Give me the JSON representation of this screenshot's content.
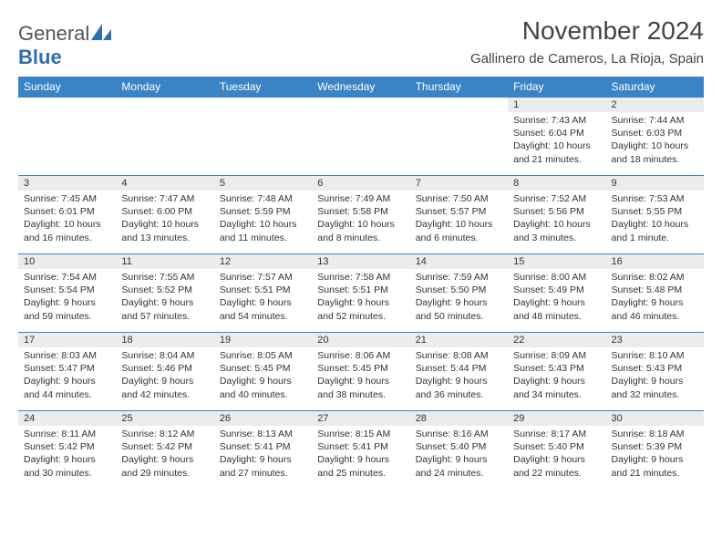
{
  "logo": {
    "line1": "General",
    "line2": "Blue"
  },
  "title": "November 2024",
  "location": "Gallinero de Cameros, La Rioja, Spain",
  "colors": {
    "header_bg": "#3a83c5",
    "header_text": "#ffffff",
    "daynum_bg": "#ececec",
    "cell_border": "#3a83c5",
    "text": "#333333",
    "logo_gray": "#555555",
    "logo_blue": "#2f6fb0",
    "background": "#ffffff"
  },
  "typography": {
    "title_fontsize": 28,
    "location_fontsize": 15,
    "weekday_fontsize": 12,
    "daynum_fontsize": 11,
    "body_fontsize": 10.5,
    "logo_fontsize": 22
  },
  "layout": {
    "columns": 7,
    "rows": 5,
    "first_weekday_index": 5
  },
  "weekdays": [
    "Sunday",
    "Monday",
    "Tuesday",
    "Wednesday",
    "Thursday",
    "Friday",
    "Saturday"
  ],
  "days": [
    {
      "n": 1,
      "sunrise": "7:43 AM",
      "sunset": "6:04 PM",
      "daylight": "10 hours and 21 minutes."
    },
    {
      "n": 2,
      "sunrise": "7:44 AM",
      "sunset": "6:03 PM",
      "daylight": "10 hours and 18 minutes."
    },
    {
      "n": 3,
      "sunrise": "7:45 AM",
      "sunset": "6:01 PM",
      "daylight": "10 hours and 16 minutes."
    },
    {
      "n": 4,
      "sunrise": "7:47 AM",
      "sunset": "6:00 PM",
      "daylight": "10 hours and 13 minutes."
    },
    {
      "n": 5,
      "sunrise": "7:48 AM",
      "sunset": "5:59 PM",
      "daylight": "10 hours and 11 minutes."
    },
    {
      "n": 6,
      "sunrise": "7:49 AM",
      "sunset": "5:58 PM",
      "daylight": "10 hours and 8 minutes."
    },
    {
      "n": 7,
      "sunrise": "7:50 AM",
      "sunset": "5:57 PM",
      "daylight": "10 hours and 6 minutes."
    },
    {
      "n": 8,
      "sunrise": "7:52 AM",
      "sunset": "5:56 PM",
      "daylight": "10 hours and 3 minutes."
    },
    {
      "n": 9,
      "sunrise": "7:53 AM",
      "sunset": "5:55 PM",
      "daylight": "10 hours and 1 minute."
    },
    {
      "n": 10,
      "sunrise": "7:54 AM",
      "sunset": "5:54 PM",
      "daylight": "9 hours and 59 minutes."
    },
    {
      "n": 11,
      "sunrise": "7:55 AM",
      "sunset": "5:52 PM",
      "daylight": "9 hours and 57 minutes."
    },
    {
      "n": 12,
      "sunrise": "7:57 AM",
      "sunset": "5:51 PM",
      "daylight": "9 hours and 54 minutes."
    },
    {
      "n": 13,
      "sunrise": "7:58 AM",
      "sunset": "5:51 PM",
      "daylight": "9 hours and 52 minutes."
    },
    {
      "n": 14,
      "sunrise": "7:59 AM",
      "sunset": "5:50 PM",
      "daylight": "9 hours and 50 minutes."
    },
    {
      "n": 15,
      "sunrise": "8:00 AM",
      "sunset": "5:49 PM",
      "daylight": "9 hours and 48 minutes."
    },
    {
      "n": 16,
      "sunrise": "8:02 AM",
      "sunset": "5:48 PM",
      "daylight": "9 hours and 46 minutes."
    },
    {
      "n": 17,
      "sunrise": "8:03 AM",
      "sunset": "5:47 PM",
      "daylight": "9 hours and 44 minutes."
    },
    {
      "n": 18,
      "sunrise": "8:04 AM",
      "sunset": "5:46 PM",
      "daylight": "9 hours and 42 minutes."
    },
    {
      "n": 19,
      "sunrise": "8:05 AM",
      "sunset": "5:45 PM",
      "daylight": "9 hours and 40 minutes."
    },
    {
      "n": 20,
      "sunrise": "8:06 AM",
      "sunset": "5:45 PM",
      "daylight": "9 hours and 38 minutes."
    },
    {
      "n": 21,
      "sunrise": "8:08 AM",
      "sunset": "5:44 PM",
      "daylight": "9 hours and 36 minutes."
    },
    {
      "n": 22,
      "sunrise": "8:09 AM",
      "sunset": "5:43 PM",
      "daylight": "9 hours and 34 minutes."
    },
    {
      "n": 23,
      "sunrise": "8:10 AM",
      "sunset": "5:43 PM",
      "daylight": "9 hours and 32 minutes."
    },
    {
      "n": 24,
      "sunrise": "8:11 AM",
      "sunset": "5:42 PM",
      "daylight": "9 hours and 30 minutes."
    },
    {
      "n": 25,
      "sunrise": "8:12 AM",
      "sunset": "5:42 PM",
      "daylight": "9 hours and 29 minutes."
    },
    {
      "n": 26,
      "sunrise": "8:13 AM",
      "sunset": "5:41 PM",
      "daylight": "9 hours and 27 minutes."
    },
    {
      "n": 27,
      "sunrise": "8:15 AM",
      "sunset": "5:41 PM",
      "daylight": "9 hours and 25 minutes."
    },
    {
      "n": 28,
      "sunrise": "8:16 AM",
      "sunset": "5:40 PM",
      "daylight": "9 hours and 24 minutes."
    },
    {
      "n": 29,
      "sunrise": "8:17 AM",
      "sunset": "5:40 PM",
      "daylight": "9 hours and 22 minutes."
    },
    {
      "n": 30,
      "sunrise": "8:18 AM",
      "sunset": "5:39 PM",
      "daylight": "9 hours and 21 minutes."
    }
  ]
}
